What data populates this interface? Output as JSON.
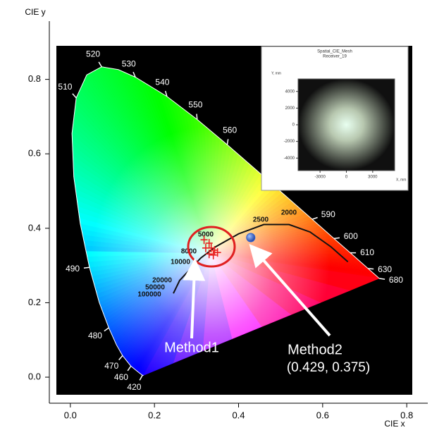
{
  "chart_data": {
    "type": "scatter",
    "xlabel": "CIE x",
    "ylabel": "CIE y",
    "xlim": [
      -0.05,
      0.85
    ],
    "ylim": [
      -0.07,
      0.95
    ],
    "xticks": [
      {
        "value": 0,
        "label": "0.0"
      },
      0.2,
      0.4,
      0.6,
      0.8
    ],
    "yticks": [
      {
        "value": 0,
        "label": "0.0"
      },
      0.2,
      0.4,
      0.6,
      0.8
    ],
    "spectral_locus": {
      "x": [
        0.1741,
        0.1714,
        0.1644,
        0.144,
        0.1241,
        0.1096,
        0.0913,
        0.0687,
        0.0454,
        0.0235,
        0.0082,
        0.0039,
        0.0139,
        0.0389,
        0.0743,
        0.1142,
        0.1547,
        0.2296,
        0.3016,
        0.3731,
        0.4441,
        0.5125,
        0.5752,
        0.627,
        0.6658,
        0.6915,
        0.7079,
        0.726,
        0.7347
      ],
      "y": [
        0.005,
        0.0051,
        0.0109,
        0.0297,
        0.0578,
        0.0868,
        0.1327,
        0.2007,
        0.295,
        0.4127,
        0.5384,
        0.6548,
        0.7502,
        0.812,
        0.8338,
        0.8262,
        0.8059,
        0.7543,
        0.6923,
        0.6245,
        0.5547,
        0.4866,
        0.4242,
        0.3725,
        0.334,
        0.3083,
        0.292,
        0.274,
        0.2653
      ],
      "labels": [
        null,
        420,
        null,
        460,
        470,
        null,
        480,
        null,
        490,
        null,
        null,
        null,
        510,
        null,
        520,
        null,
        530,
        540,
        550,
        560,
        null,
        null,
        590,
        600,
        610,
        null,
        630,
        null,
        680
      ]
    },
    "planckian_locus": {
      "x": [
        0.245,
        0.26,
        0.285,
        0.31,
        0.345,
        0.4,
        0.46,
        0.52,
        0.57,
        0.62,
        0.66
      ],
      "y": [
        0.225,
        0.26,
        0.29,
        0.32,
        0.35,
        0.385,
        0.41,
        0.41,
        0.39,
        0.35,
        0.31
      ],
      "labels": [
        100000,
        50000,
        20000,
        10000,
        8000,
        5000,
        2500,
        2000
      ]
    },
    "series": [
      {
        "name": "Method1",
        "color": "#e82020",
        "x": [
          0.318,
          0.33,
          0.322,
          0.335,
          0.343,
          0.33,
          0.34,
          0.35
        ],
        "y": [
          0.369,
          0.36,
          0.347,
          0.347,
          0.341,
          0.331,
          0.328,
          0.335
        ]
      },
      {
        "name": "Method2",
        "color": "#2d5fd0",
        "x": [
          0.429
        ],
        "y": [
          0.375
        ],
        "value_labels": [
          "(0.429, 0.375)"
        ]
      }
    ],
    "inset": {
      "title": [
        "Spatial_CIE_Mesh",
        "Receiver_19"
      ],
      "xlabel": "X, mm",
      "ylabel": "Y, mm",
      "xlim": [
        -5500,
        5500
      ],
      "ylim": [
        -5500,
        5500
      ],
      "xticks": [
        -3000,
        0,
        3000
      ],
      "yticks": [
        4000,
        2000,
        0,
        -2000,
        -4000
      ]
    }
  }
}
